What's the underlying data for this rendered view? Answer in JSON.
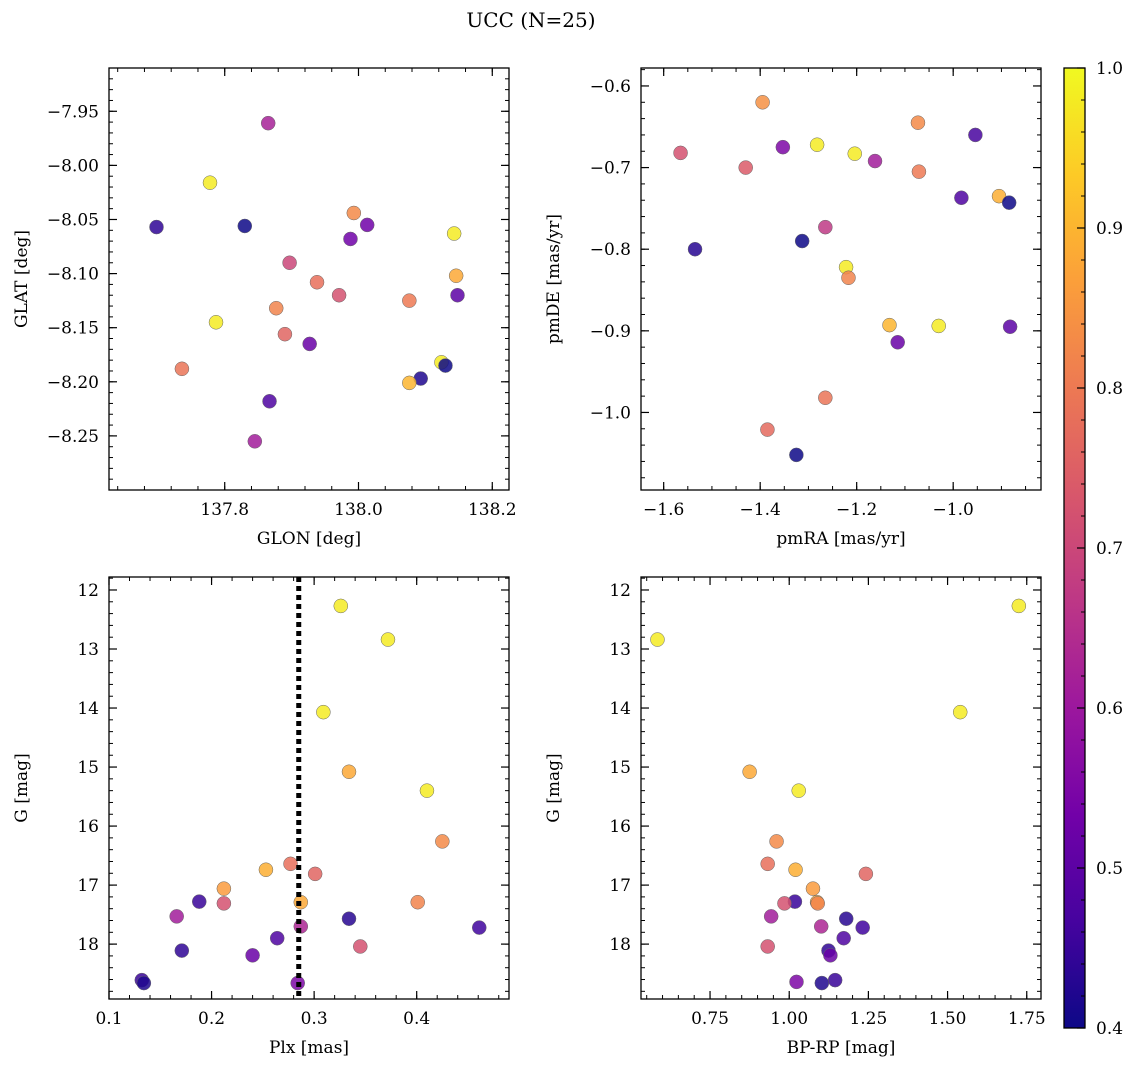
{
  "title": "UCC (N=25)",
  "colorbar": {
    "min": 0.4,
    "max": 1.0,
    "ticks": [
      0.4,
      0.5,
      0.6,
      0.7,
      0.8,
      0.9,
      1.0
    ],
    "tick_labels": [
      "0.4",
      "0.5",
      "0.6",
      "0.7",
      "0.8",
      "0.9",
      "1.0"
    ],
    "colormap": "plasma",
    "stops": [
      "#0d0887",
      "#46039f",
      "#7201a8",
      "#9c179e",
      "#bd3786",
      "#d8576b",
      "#ed7953",
      "#fb9f3a",
      "#fdca26",
      "#f0f921"
    ]
  },
  "chart_data": [
    {
      "id": "p1",
      "type": "scatter",
      "xlabel": "GLON [deg]",
      "ylabel": "GLAT [deg]",
      "xlim": [
        137.627,
        138.225
      ],
      "ylim": [
        -8.3,
        -7.91
      ],
      "xticks": [
        137.8,
        138.0,
        138.2
      ],
      "xtick_labels": [
        "137.8",
        "138.0",
        "138.2"
      ],
      "yticks": [
        -7.95,
        -8.0,
        -8.05,
        -8.1,
        -8.15,
        -8.2,
        -8.25
      ],
      "ytick_labels": [
        "−7.95",
        "−8.00",
        "−8.05",
        "−8.10",
        "−8.15",
        "−8.20",
        "−8.25"
      ],
      "x_minor_step": 0.04,
      "y_minor_step": 0.01,
      "points": [
        {
          "x": 137.865,
          "y": -7.961,
          "c": 0.62
        },
        {
          "x": 137.778,
          "y": -8.016,
          "c": 0.98
        },
        {
          "x": 137.698,
          "y": -8.057,
          "c": 0.44
        },
        {
          "x": 137.83,
          "y": -8.056,
          "c": 0.4
        },
        {
          "x": 137.993,
          "y": -8.044,
          "c": 0.83
        },
        {
          "x": 138.013,
          "y": -8.055,
          "c": 0.53
        },
        {
          "x": 137.988,
          "y": -8.068,
          "c": 0.53
        },
        {
          "x": 138.143,
          "y": -8.063,
          "c": 0.98
        },
        {
          "x": 137.897,
          "y": -8.09,
          "c": 0.7
        },
        {
          "x": 138.146,
          "y": -8.102,
          "c": 0.88
        },
        {
          "x": 137.938,
          "y": -8.108,
          "c": 0.78
        },
        {
          "x": 137.971,
          "y": -8.12,
          "c": 0.72
        },
        {
          "x": 138.148,
          "y": -8.12,
          "c": 0.5
        },
        {
          "x": 138.076,
          "y": -8.125,
          "c": 0.8
        },
        {
          "x": 137.877,
          "y": -8.132,
          "c": 0.82
        },
        {
          "x": 137.787,
          "y": -8.145,
          "c": 0.98
        },
        {
          "x": 137.89,
          "y": -8.156,
          "c": 0.76
        },
        {
          "x": 137.927,
          "y": -8.165,
          "c": 0.52
        },
        {
          "x": 137.736,
          "y": -8.188,
          "c": 0.79
        },
        {
          "x": 138.124,
          "y": -8.182,
          "c": 0.98
        },
        {
          "x": 138.13,
          "y": -8.185,
          "c": 0.4
        },
        {
          "x": 138.093,
          "y": -8.197,
          "c": 0.42
        },
        {
          "x": 138.076,
          "y": -8.201,
          "c": 0.9
        },
        {
          "x": 137.867,
          "y": -8.218,
          "c": 0.48
        },
        {
          "x": 137.845,
          "y": -8.255,
          "c": 0.61
        }
      ]
    },
    {
      "id": "p2",
      "type": "scatter",
      "xlabel": "pmRA [mas/yr]",
      "ylabel": "pmDE [mas/yr]",
      "xlim": [
        -1.647,
        -0.818
      ],
      "ylim": [
        -1.095,
        -0.578
      ],
      "xticks": [
        -1.6,
        -1.4,
        -1.2,
        -1.0
      ],
      "xtick_labels": [
        "−1.6",
        "−1.4",
        "−1.2",
        "−1.0"
      ],
      "yticks": [
        -0.6,
        -0.7,
        -0.8,
        -0.9,
        -1.0
      ],
      "ytick_labels": [
        "−0.6",
        "−0.7",
        "−0.8",
        "−0.9",
        "−1.0"
      ],
      "x_minor_step": 0.05,
      "y_minor_step": 0.02,
      "points": [
        {
          "x": -1.395,
          "y": -0.62,
          "c": 0.84
        },
        {
          "x": -1.565,
          "y": -0.682,
          "c": 0.72
        },
        {
          "x": -1.43,
          "y": -0.7,
          "c": 0.74
        },
        {
          "x": -1.353,
          "y": -0.675,
          "c": 0.55
        },
        {
          "x": -1.282,
          "y": -0.672,
          "c": 0.98
        },
        {
          "x": -1.204,
          "y": -0.683,
          "c": 0.98
        },
        {
          "x": -1.162,
          "y": -0.692,
          "c": 0.61
        },
        {
          "x": -1.073,
          "y": -0.645,
          "c": 0.83
        },
        {
          "x": -1.071,
          "y": -0.705,
          "c": 0.8
        },
        {
          "x": -0.954,
          "y": -0.66,
          "c": 0.47
        },
        {
          "x": -0.983,
          "y": -0.737,
          "c": 0.48
        },
        {
          "x": -0.905,
          "y": -0.735,
          "c": 0.89
        },
        {
          "x": -0.884,
          "y": -0.743,
          "c": 0.4
        },
        {
          "x": -1.535,
          "y": -0.8,
          "c": 0.43
        },
        {
          "x": -1.313,
          "y": -0.79,
          "c": 0.4
        },
        {
          "x": -1.265,
          "y": -0.773,
          "c": 0.67
        },
        {
          "x": -1.222,
          "y": -0.822,
          "c": 0.98
        },
        {
          "x": -1.217,
          "y": -0.835,
          "c": 0.82
        },
        {
          "x": -1.132,
          "y": -0.893,
          "c": 0.9
        },
        {
          "x": -1.03,
          "y": -0.894,
          "c": 0.98
        },
        {
          "x": -0.882,
          "y": -0.895,
          "c": 0.5
        },
        {
          "x": -1.115,
          "y": -0.914,
          "c": 0.52
        },
        {
          "x": -1.265,
          "y": -0.982,
          "c": 0.79
        },
        {
          "x": -1.385,
          "y": -1.021,
          "c": 0.77
        },
        {
          "x": -1.325,
          "y": -1.052,
          "c": 0.4
        }
      ]
    },
    {
      "id": "p3",
      "type": "scatter",
      "xlabel": "Plx [mas]",
      "ylabel": "G [mag]",
      "xlim": [
        0.1,
        0.49
      ],
      "ylim": [
        18.93,
        11.78
      ],
      "y_inverted": true,
      "xticks": [
        0.1,
        0.2,
        0.3,
        0.4
      ],
      "xtick_labels": [
        "0.1",
        "0.2",
        "0.3",
        "0.4"
      ],
      "yticks": [
        12,
        13,
        14,
        15,
        16,
        17,
        18
      ],
      "ytick_labels": [
        "12",
        "13",
        "14",
        "15",
        "16",
        "17",
        "18"
      ],
      "x_minor_step": 0.02,
      "y_minor_step": 0.2,
      "vline": {
        "x": 0.285,
        "style": "dotted"
      },
      "points": [
        {
          "x": 0.326,
          "y": 12.27,
          "c": 0.98
        },
        {
          "x": 0.372,
          "y": 12.84,
          "c": 0.98
        },
        {
          "x": 0.309,
          "y": 14.07,
          "c": 0.98
        },
        {
          "x": 0.334,
          "y": 15.08,
          "c": 0.88
        },
        {
          "x": 0.41,
          "y": 15.4,
          "c": 0.98
        },
        {
          "x": 0.425,
          "y": 16.26,
          "c": 0.83
        },
        {
          "x": 0.277,
          "y": 16.64,
          "c": 0.78
        },
        {
          "x": 0.253,
          "y": 16.74,
          "c": 0.89
        },
        {
          "x": 0.301,
          "y": 16.81,
          "c": 0.76
        },
        {
          "x": 0.212,
          "y": 17.06,
          "c": 0.86
        },
        {
          "x": 0.188,
          "y": 17.28,
          "c": 0.45
        },
        {
          "x": 0.212,
          "y": 17.31,
          "c": 0.72
        },
        {
          "x": 0.287,
          "y": 17.29,
          "c": 0.88
        },
        {
          "x": 0.401,
          "y": 17.29,
          "c": 0.82
        },
        {
          "x": 0.166,
          "y": 17.53,
          "c": 0.61
        },
        {
          "x": 0.334,
          "y": 17.57,
          "c": 0.43
        },
        {
          "x": 0.287,
          "y": 17.7,
          "c": 0.63
        },
        {
          "x": 0.461,
          "y": 17.72,
          "c": 0.46
        },
        {
          "x": 0.264,
          "y": 17.9,
          "c": 0.48
        },
        {
          "x": 0.345,
          "y": 18.04,
          "c": 0.72
        },
        {
          "x": 0.171,
          "y": 18.11,
          "c": 0.44
        },
        {
          "x": 0.24,
          "y": 18.19,
          "c": 0.52
        },
        {
          "x": 0.132,
          "y": 18.61,
          "c": 0.45
        },
        {
          "x": 0.134,
          "y": 18.66,
          "c": 0.42
        },
        {
          "x": 0.284,
          "y": 18.66,
          "c": 0.55
        }
      ]
    },
    {
      "id": "p4",
      "type": "scatter",
      "xlabel": "BP-RP [mag]",
      "ylabel": "G [mag]",
      "xlim": [
        0.532,
        1.795
      ],
      "ylim": [
        18.93,
        11.78
      ],
      "y_inverted": true,
      "xticks": [
        0.75,
        1.0,
        1.25,
        1.5,
        1.75
      ],
      "xtick_labels": [
        "0.75",
        "1.00",
        "1.25",
        "1.50",
        "1.75"
      ],
      "yticks": [
        12,
        13,
        14,
        15,
        16,
        17,
        18
      ],
      "ytick_labels": [
        "12",
        "13",
        "14",
        "15",
        "16",
        "17",
        "18"
      ],
      "x_minor_step": 0.05,
      "y_minor_step": 0.2,
      "points": [
        {
          "x": 1.725,
          "y": 12.27,
          "c": 0.98
        },
        {
          "x": 0.584,
          "y": 12.84,
          "c": 0.98
        },
        {
          "x": 1.54,
          "y": 14.07,
          "c": 0.98
        },
        {
          "x": 0.875,
          "y": 15.08,
          "c": 0.88
        },
        {
          "x": 1.03,
          "y": 15.4,
          "c": 0.98
        },
        {
          "x": 0.96,
          "y": 16.26,
          "c": 0.83
        },
        {
          "x": 0.932,
          "y": 16.64,
          "c": 0.78
        },
        {
          "x": 1.02,
          "y": 16.74,
          "c": 0.89
        },
        {
          "x": 1.242,
          "y": 16.81,
          "c": 0.76
        },
        {
          "x": 1.075,
          "y": 17.06,
          "c": 0.86
        },
        {
          "x": 1.018,
          "y": 17.28,
          "c": 0.45
        },
        {
          "x": 0.985,
          "y": 17.31,
          "c": 0.72
        },
        {
          "x": 1.088,
          "y": 17.29,
          "c": 0.88
        },
        {
          "x": 1.09,
          "y": 17.31,
          "c": 0.82
        },
        {
          "x": 0.943,
          "y": 17.53,
          "c": 0.61
        },
        {
          "x": 1.18,
          "y": 17.57,
          "c": 0.43
        },
        {
          "x": 1.101,
          "y": 17.7,
          "c": 0.63
        },
        {
          "x": 1.232,
          "y": 17.72,
          "c": 0.46
        },
        {
          "x": 1.172,
          "y": 17.9,
          "c": 0.48
        },
        {
          "x": 0.932,
          "y": 18.04,
          "c": 0.72
        },
        {
          "x": 1.124,
          "y": 18.11,
          "c": 0.44
        },
        {
          "x": 1.13,
          "y": 18.19,
          "c": 0.52
        },
        {
          "x": 1.145,
          "y": 18.61,
          "c": 0.45
        },
        {
          "x": 1.103,
          "y": 18.66,
          "c": 0.42
        },
        {
          "x": 1.023,
          "y": 18.64,
          "c": 0.55
        }
      ]
    }
  ]
}
